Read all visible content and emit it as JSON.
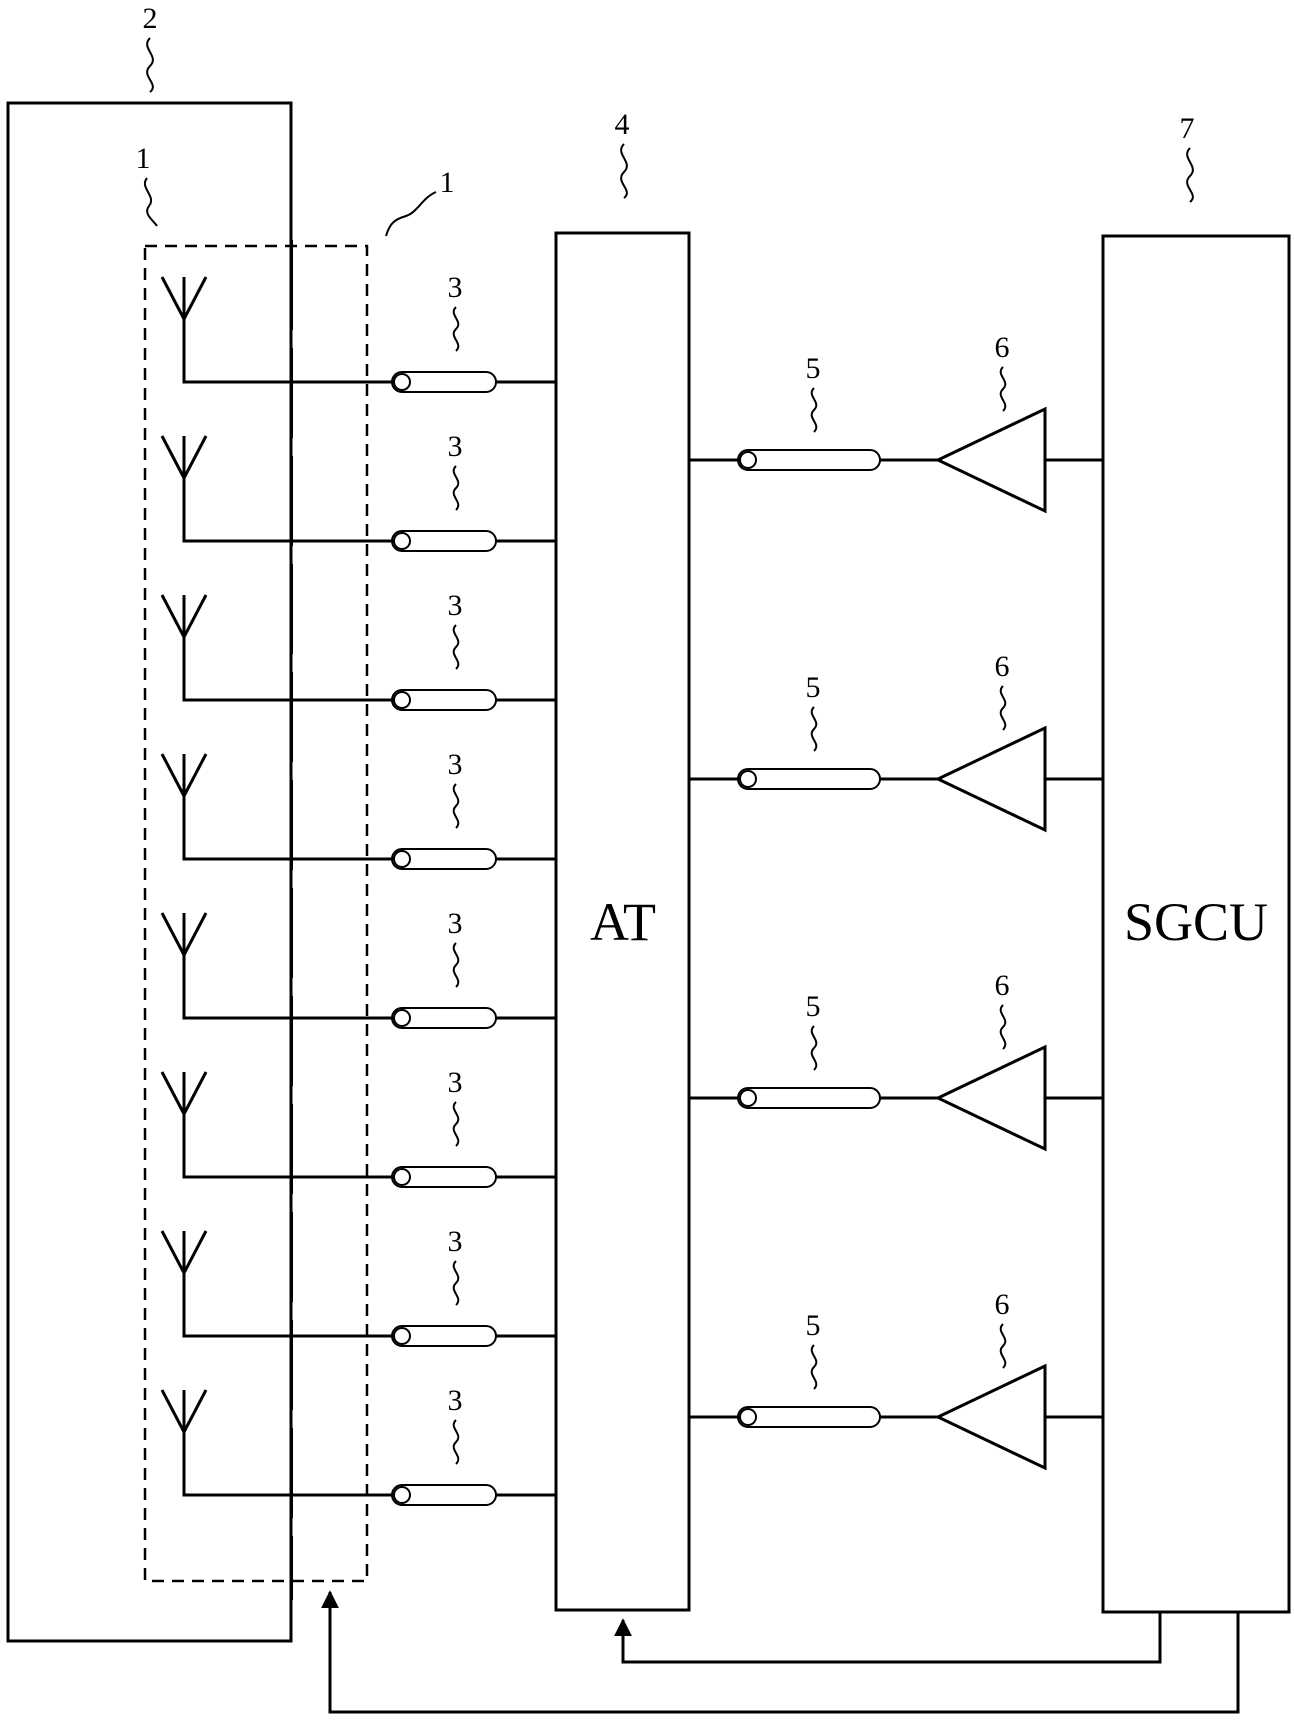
{
  "labels": {
    "enclosure": "2",
    "antenna_group_left": "1",
    "antenna_group_right": "1",
    "at_ref": "4",
    "sgcu_ref": "7",
    "coax_in": "3",
    "coax_out": "5",
    "amplifier": "6"
  },
  "blocks": {
    "at": "AT",
    "sgcu": "SGCU"
  },
  "counts": {
    "antennas": 8,
    "amplifier_chains": 4
  }
}
